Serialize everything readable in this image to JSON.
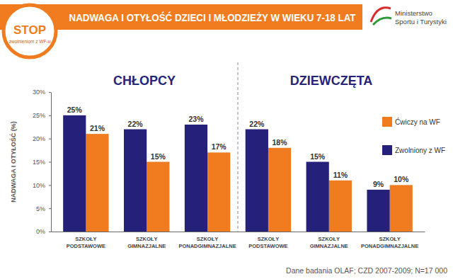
{
  "header": {
    "logo": [
      "STOP",
      "zwolnieniom z WF-u"
    ],
    "organization": [
      "Ministerstwo",
      "Sportu i Turystyki"
    ]
  },
  "chart_data": {
    "type": "bar",
    "title": "NADWAGA I OTYŁOŚĆ DZIECI I MŁODZIEŻY W WIEKU 7-18 LAT",
    "y_label": "NADWAGA I OTYŁOŚĆ (%)",
    "groups": [
      "CHŁOPCY",
      "DZIEWCZĘTA"
    ],
    "categories": [
      "SZKOŁY PODSTAWOWE",
      "SZKOŁY GIMNAZJALNE",
      "SZKOŁY PONADGIMNAZJALNE",
      "SZKOŁY PODSTAWOWE",
      "SZKOŁY GIMNAZJALNE",
      "SZKOŁY PONADGIMNAZJALNE"
    ],
    "series": [
      {
        "name": "Ćwiczy na WF",
        "color": "#f07c1f",
        "values": [
          21,
          15,
          17,
          18,
          11,
          10
        ],
        "value_labels": [
          "21%",
          "15%",
          "17%",
          "18%",
          "11%",
          "10%"
        ]
      },
      {
        "name": "Zwolniony z WF",
        "color": "#25207a",
        "values": [
          25,
          22,
          23,
          22,
          15,
          9
        ],
        "value_labels": [
          "25%",
          "22%",
          "23%",
          "22%",
          "15%",
          "9%"
        ]
      }
    ],
    "ylim": [
      0,
      30
    ],
    "yticks": [
      {
        "value": 0,
        "label": "0%"
      },
      {
        "value": 5,
        "label": "5%"
      },
      {
        "value": 10,
        "label": "10%"
      },
      {
        "value": 15,
        "label": "15%"
      },
      {
        "value": 20,
        "label": "20%"
      },
      {
        "value": 25,
        "label": "25%"
      },
      {
        "value": 30,
        "label": "30%"
      }
    ],
    "grid": false,
    "legend": "upper right",
    "data_labels": true,
    "source": "Dane badania OLAF; CZD 2007-2009; N=17 000"
  }
}
